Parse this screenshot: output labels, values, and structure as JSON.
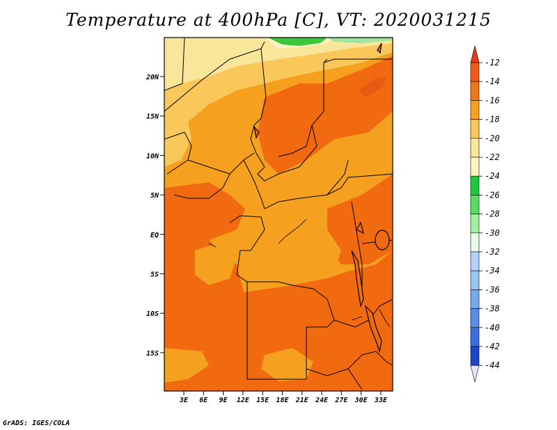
{
  "title": "Temperature at 400hPa [C], VT: 2020031215",
  "credit": "GrADS: IGES/COLA",
  "map": {
    "lon_labels": [
      "3E",
      "6E",
      "9E",
      "12E",
      "15E",
      "18E",
      "21E",
      "24E",
      "27E",
      "30E",
      "33E"
    ],
    "lat_labels": [
      "20N",
      "15N",
      "10N",
      "5N",
      "EQ",
      "5S",
      "10S",
      "15S"
    ]
  },
  "colorbar": {
    "labels": [
      "-12",
      "-14",
      "-16",
      "-18",
      "-20",
      "-22",
      "-24",
      "-26",
      "-28",
      "-30",
      "-32",
      "-34",
      "-36",
      "-38",
      "-40",
      "-42",
      "-44"
    ],
    "colors": [
      "#f05a14",
      "#f07814",
      "#f5a01e",
      "#fac85a",
      "#fae69b",
      "#fff5c3",
      "#1ec83c",
      "#5adc64",
      "#a0f0a0",
      "#e6fae6",
      "#b4d2f5",
      "#96c8f0",
      "#78aaeb",
      "#5a8ce6",
      "#3c6ee1",
      "#1e46c8",
      "#0f1e82"
    ],
    "under_color": "#e6e6fa",
    "over_color": "#e63c14"
  },
  "colors": {
    "dominant": "#f26a10",
    "mid": "#f5a01e",
    "light": "#fac85a",
    "pale": "#fae69b",
    "green": "#3cc83c",
    "lake": "#000000"
  }
}
